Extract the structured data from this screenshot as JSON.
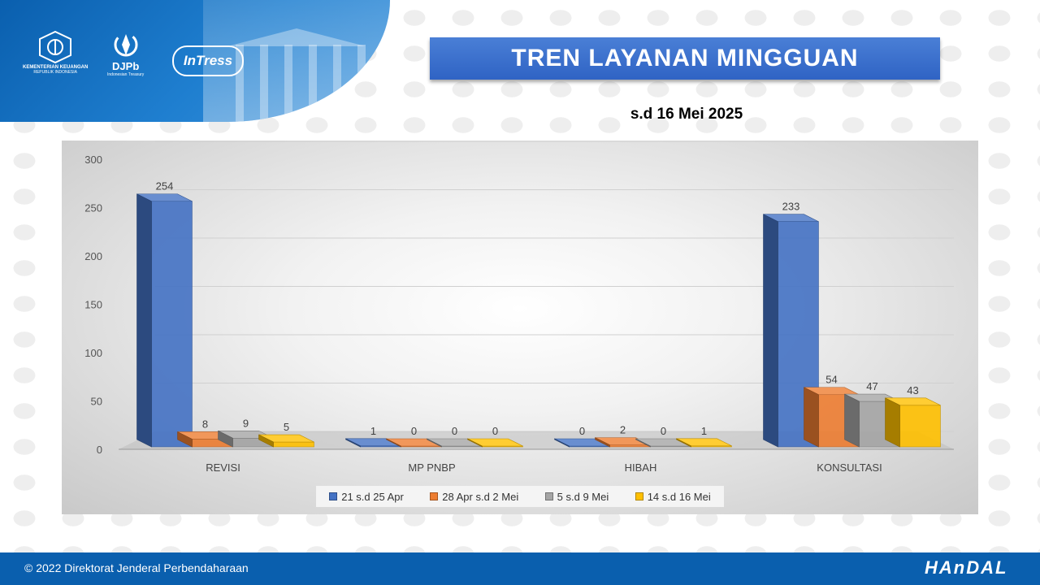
{
  "header": {
    "kemenkeu_line1": "KEMENTERIAN KEUANGAN",
    "kemenkeu_line2": "REPUBLIK INDONESIA",
    "djpb_name": "DJPb",
    "djpb_sub": "Indonesian Treasury",
    "intress": "InTress"
  },
  "title": "TREN LAYANAN MINGGUAN",
  "subtitle": "s.d 16 Mei 2025",
  "footer": {
    "copyright": "© 2022 Direktorat Jenderal Perbendaharaan",
    "brand": "HAnDAL"
  },
  "chart_data": {
    "type": "bar",
    "categories": [
      "REVISI",
      "MP PNBP",
      "HIBAH",
      "KONSULTASI"
    ],
    "series": [
      {
        "name": "21 s.d 25 Apr",
        "color": "#4472c4",
        "values": [
          254,
          1,
          0,
          233
        ]
      },
      {
        "name": "28 Apr s.d 2 Mei",
        "color": "#ed7d31",
        "values": [
          8,
          0,
          2,
          54
        ]
      },
      {
        "name": "5 s.d 9 Mei",
        "color": "#a5a5a5",
        "values": [
          9,
          0,
          0,
          47
        ]
      },
      {
        "name": "14 s.d 16 Mei",
        "color": "#ffc000",
        "values": [
          5,
          0,
          1,
          43
        ]
      }
    ],
    "ylim": [
      0,
      300
    ],
    "yticks": [
      0,
      50,
      100,
      150,
      200,
      250,
      300
    ],
    "legend_position": "bottom",
    "grid": true
  }
}
